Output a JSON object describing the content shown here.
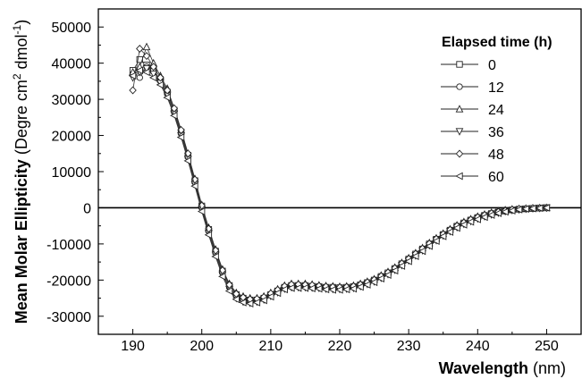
{
  "chart_data": {
    "type": "scatter",
    "xlabel": "Wavelength",
    "xunit": "(nm)",
    "ylabel": "Mean Molar Ellipticity",
    "yunit_parts": [
      "(Degre cm",
      "2",
      " dmol",
      "-1",
      ")"
    ],
    "xlim": [
      185,
      255
    ],
    "ylim": [
      -35000,
      55000
    ],
    "xticks": [
      190,
      200,
      210,
      220,
      230,
      240,
      250
    ],
    "yticks": [
      -30000,
      -20000,
      -10000,
      0,
      10000,
      20000,
      30000,
      40000,
      50000
    ],
    "xtick_labels": [
      "190",
      "200",
      "210",
      "220",
      "230",
      "240",
      "250"
    ],
    "ytick_labels": [
      "-30000",
      "-20000",
      "-10000",
      "0",
      "10000",
      "20000",
      "30000",
      "40000",
      "50000"
    ],
    "zero_line": true,
    "grid": false,
    "legend_position": "top-right",
    "legend_title": "Elapsed time (h)",
    "x": [
      190,
      191,
      192,
      193,
      194,
      195,
      196,
      197,
      198,
      199,
      200,
      201,
      202,
      203,
      204,
      205,
      206,
      207,
      208,
      209,
      210,
      211,
      212,
      213,
      214,
      215,
      216,
      217,
      218,
      219,
      220,
      221,
      222,
      223,
      224,
      225,
      226,
      227,
      228,
      229,
      230,
      231,
      232,
      233,
      234,
      235,
      236,
      237,
      238,
      239,
      240,
      241,
      242,
      243,
      244,
      245,
      246,
      247,
      248,
      249,
      250
    ],
    "series": [
      {
        "name": "0",
        "marker": "square",
        "values": [
          38000,
          41000,
          39500,
          38000,
          35500,
          32000,
          27000,
          21000,
          14500,
          7500,
          500,
          -6000,
          -12000,
          -17500,
          -21500,
          -24000,
          -25000,
          -25500,
          -25500,
          -25000,
          -24000,
          -23000,
          -22000,
          -21500,
          -21500,
          -21500,
          -21700,
          -21800,
          -22000,
          -22000,
          -22100,
          -22000,
          -21800,
          -21300,
          -20700,
          -20000,
          -19000,
          -18000,
          -16800,
          -15500,
          -14200,
          -12800,
          -11400,
          -10000,
          -8700,
          -7400,
          -6200,
          -5100,
          -4200,
          -3400,
          -2700,
          -2100,
          -1600,
          -1200,
          -900,
          -600,
          -400,
          -300,
          -200,
          -100,
          0
        ]
      },
      {
        "name": "12",
        "marker": "circle",
        "values": [
          37000,
          36000,
          39000,
          38000,
          35000,
          31500,
          26500,
          20500,
          14000,
          7000,
          0,
          -6500,
          -12500,
          -18000,
          -22000,
          -24500,
          -25500,
          -26000,
          -25800,
          -25200,
          -24200,
          -23200,
          -22200,
          -21800,
          -21700,
          -21800,
          -21900,
          -22000,
          -22200,
          -22300,
          -22300,
          -22200,
          -22000,
          -21500,
          -20900,
          -20200,
          -19200,
          -18200,
          -17000,
          -15700,
          -14400,
          -13000,
          -11600,
          -10200,
          -8800,
          -7500,
          -6300,
          -5200,
          -4300,
          -3500,
          -2800,
          -2200,
          -1700,
          -1300,
          -900,
          -600,
          -400,
          -300,
          -200,
          -100,
          0
        ]
      },
      {
        "name": "24",
        "marker": "triangle-up",
        "values": [
          37500,
          39000,
          44500,
          40000,
          36500,
          33000,
          27500,
          21500,
          15000,
          8000,
          800,
          -5500,
          -11500,
          -17000,
          -21000,
          -23500,
          -24500,
          -25000,
          -25000,
          -24500,
          -23500,
          -22500,
          -21500,
          -21000,
          -21000,
          -21000,
          -21200,
          -21400,
          -21600,
          -21700,
          -21800,
          -21700,
          -21500,
          -21000,
          -20400,
          -19700,
          -18700,
          -17700,
          -16500,
          -15200,
          -13900,
          -12500,
          -11100,
          -9700,
          -8400,
          -7100,
          -5900,
          -4800,
          -3900,
          -3100,
          -2400,
          -1800,
          -1300,
          -900,
          -600,
          -400,
          -300,
          -200,
          -100,
          -50,
          0
        ]
      },
      {
        "name": "36",
        "marker": "triangle-down",
        "values": [
          36000,
          37500,
          38500,
          37000,
          34500,
          31000,
          26000,
          20000,
          13500,
          6500,
          -500,
          -7000,
          -13000,
          -18500,
          -22500,
          -25000,
          -26000,
          -26300,
          -26000,
          -25400,
          -24400,
          -23400,
          -22400,
          -22000,
          -22000,
          -22000,
          -22100,
          -22200,
          -22400,
          -22500,
          -22500,
          -22400,
          -22200,
          -21700,
          -21100,
          -20400,
          -19400,
          -18400,
          -17200,
          -15900,
          -14600,
          -13200,
          -11800,
          -10400,
          -9000,
          -7700,
          -6500,
          -5400,
          -4500,
          -3700,
          -3000,
          -2400,
          -1900,
          -1400,
          -1000,
          -700,
          -500,
          -300,
          -200,
          -100,
          0
        ]
      },
      {
        "name": "48",
        "marker": "diamond",
        "values": [
          32500,
          44000,
          42000,
          39000,
          36000,
          32500,
          27500,
          21500,
          15000,
          7800,
          600,
          -5800,
          -11800,
          -17300,
          -21300,
          -23800,
          -24800,
          -25300,
          -25200,
          -24700,
          -23700,
          -22700,
          -21700,
          -21200,
          -21200,
          -21300,
          -21400,
          -21600,
          -21800,
          -21900,
          -22000,
          -21900,
          -21700,
          -21200,
          -20600,
          -19900,
          -18900,
          -17900,
          -16700,
          -15400,
          -14100,
          -12700,
          -11300,
          -9900,
          -8600,
          -7300,
          -6100,
          -5000,
          -4100,
          -3300,
          -2600,
          -2000,
          -1500,
          -1100,
          -800,
          -500,
          -300,
          -200,
          -100,
          -50,
          0
        ]
      },
      {
        "name": "60",
        "marker": "triangle-left",
        "values": [
          36500,
          38000,
          37500,
          36000,
          34000,
          30500,
          25500,
          19500,
          13000,
          6000,
          -1000,
          -7500,
          -13500,
          -19000,
          -23000,
          -25300,
          -26200,
          -26500,
          -26200,
          -25600,
          -24600,
          -23600,
          -22600,
          -22200,
          -22200,
          -22200,
          -22300,
          -22400,
          -22600,
          -22700,
          -22700,
          -22600,
          -22400,
          -21900,
          -21300,
          -20600,
          -19600,
          -18600,
          -17400,
          -16100,
          -14800,
          -13400,
          -12000,
          -10600,
          -9200,
          -7900,
          -6700,
          -5600,
          -4700,
          -3900,
          -3200,
          -2600,
          -2000,
          -1500,
          -1100,
          -800,
          -500,
          -300,
          -200,
          -100,
          0
        ]
      }
    ]
  }
}
